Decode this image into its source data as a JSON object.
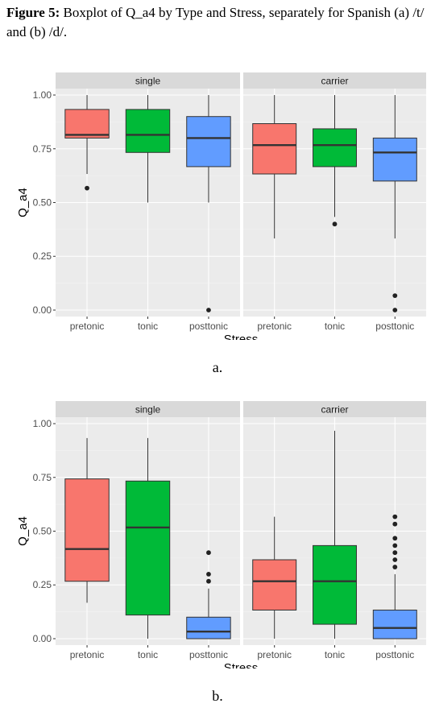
{
  "caption": {
    "prefix": "Figure 5:",
    "text": "Boxplot of Q_a4 by Type and Stress, separately for Spanish (a) /t/ and (b) /d/."
  },
  "colors": {
    "pretonic": "#F8766D",
    "tonic": "#00BA38",
    "posttonic": "#619CFF",
    "panel_bg": "#EBEBEB",
    "strip_bg": "#D9D9D9",
    "grid_major": "#FFFFFF",
    "grid_minor": "#F4F4F4"
  },
  "chart_data": [
    {
      "type": "boxplot",
      "label": "a.",
      "xlabel": "Stress",
      "ylabel": "Q_a4",
      "ylim": [
        -0.03,
        1.03
      ],
      "yticks": [
        0.0,
        0.25,
        0.5,
        0.75,
        1.0
      ],
      "ytick_labels": [
        "0.00",
        "0.25",
        "0.50",
        "0.75",
        "1.00"
      ],
      "categories": [
        "pretonic",
        "tonic",
        "posttonic"
      ],
      "facets": [
        {
          "name": "single",
          "boxes": [
            {
              "category": "pretonic",
              "min": 0.633,
              "q1": 0.8,
              "median": 0.815,
              "q3": 0.933,
              "max": 1.0,
              "outliers": [
                0.567
              ]
            },
            {
              "category": "tonic",
              "min": 0.5,
              "q1": 0.733,
              "median": 0.815,
              "q3": 0.933,
              "max": 1.0,
              "outliers": []
            },
            {
              "category": "posttonic",
              "min": 0.5,
              "q1": 0.667,
              "median": 0.8,
              "q3": 0.9,
              "max": 1.0,
              "outliers": [
                0.0
              ]
            }
          ]
        },
        {
          "name": "carrier",
          "boxes": [
            {
              "category": "pretonic",
              "min": 0.333,
              "q1": 0.633,
              "median": 0.767,
              "q3": 0.867,
              "max": 1.0,
              "outliers": []
            },
            {
              "category": "tonic",
              "min": 0.433,
              "q1": 0.667,
              "median": 0.767,
              "q3": 0.843,
              "max": 1.0,
              "outliers": [
                0.4
              ]
            },
            {
              "category": "posttonic",
              "min": 0.333,
              "q1": 0.6,
              "median": 0.733,
              "q3": 0.8,
              "max": 1.0,
              "outliers": [
                0.067,
                0.0
              ]
            }
          ]
        }
      ]
    },
    {
      "type": "boxplot",
      "label": "b.",
      "xlabel": "Stress",
      "ylabel": "Q_a4",
      "ylim": [
        -0.03,
        1.03
      ],
      "yticks": [
        0.0,
        0.25,
        0.5,
        0.75,
        1.0
      ],
      "ytick_labels": [
        "0.00",
        "0.25",
        "0.50",
        "0.75",
        "1.00"
      ],
      "categories": [
        "pretonic",
        "tonic",
        "posttonic"
      ],
      "facets": [
        {
          "name": "single",
          "boxes": [
            {
              "category": "pretonic",
              "min": 0.167,
              "q1": 0.267,
              "median": 0.417,
              "q3": 0.743,
              "max": 0.933,
              "outliers": []
            },
            {
              "category": "tonic",
              "min": 0.0,
              "q1": 0.11,
              "median": 0.517,
              "q3": 0.733,
              "max": 0.933,
              "outliers": []
            },
            {
              "category": "posttonic",
              "min": 0.0,
              "q1": 0.0,
              "median": 0.033,
              "q3": 0.1,
              "max": 0.233,
              "outliers": [
                0.267,
                0.3,
                0.4
              ]
            }
          ]
        },
        {
          "name": "carrier",
          "boxes": [
            {
              "category": "pretonic",
              "min": 0.0,
              "q1": 0.133,
              "median": 0.267,
              "q3": 0.367,
              "max": 0.567,
              "outliers": []
            },
            {
              "category": "tonic",
              "min": 0.0,
              "q1": 0.067,
              "median": 0.267,
              "q3": 0.433,
              "max": 0.967,
              "outliers": []
            },
            {
              "category": "posttonic",
              "min": 0.0,
              "q1": 0.0,
              "median": 0.05,
              "q3": 0.133,
              "max": 0.3,
              "outliers": [
                0.333,
                0.367,
                0.4,
                0.433,
                0.467,
                0.533,
                0.567
              ]
            }
          ]
        }
      ]
    }
  ]
}
